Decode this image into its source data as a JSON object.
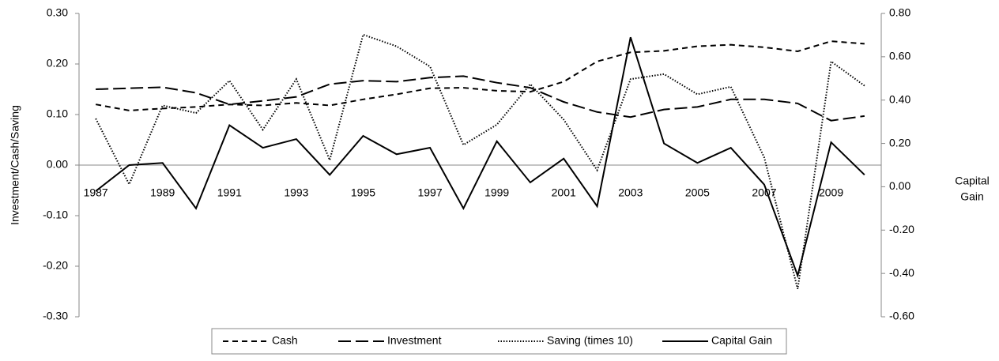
{
  "chart_data": {
    "type": "line",
    "ylabel": "Investment/Cash/Saving",
    "y2label": [
      "Capital",
      "Gain"
    ],
    "categories": [
      "1987",
      null,
      "1989",
      null,
      "1991",
      null,
      "1993",
      null,
      "1995",
      null,
      "1997",
      null,
      "1999",
      null,
      "2001",
      null,
      "2003",
      null,
      "2005",
      null,
      "2007",
      null,
      "2009",
      null
    ],
    "ylim": [
      -0.3,
      0.3
    ],
    "yticks": [
      {
        "value": -0.3,
        "label": "-0.30"
      },
      {
        "value": -0.2,
        "label": "-0.20"
      },
      {
        "value": -0.1,
        "label": "-0.10"
      },
      {
        "value": 0,
        "label": "0.00"
      },
      {
        "value": 0.1,
        "label": "0.10"
      },
      {
        "value": 0.2,
        "label": "0.20"
      },
      {
        "value": 0.3,
        "label": "0.30"
      }
    ],
    "y2lim": [
      -0.6,
      0.8
    ],
    "y2ticks": [
      {
        "value": -0.6,
        "label": "-0.60"
      },
      {
        "value": -0.4,
        "label": "-0.40"
      },
      {
        "value": -0.2,
        "label": "-0.20"
      },
      {
        "value": 0,
        "label": "0.00"
      },
      {
        "value": 0.2,
        "label": "0.20"
      },
      {
        "value": 0.4,
        "label": "0.40"
      },
      {
        "value": 0.6,
        "label": "0.60"
      },
      {
        "value": 0.8,
        "label": "0.80"
      }
    ],
    "legend": "bottom",
    "series": [
      {
        "name": "Cash",
        "color": "#000000",
        "dash": "7,5",
        "values": [
          0.12,
          0.108,
          0.112,
          0.115,
          0.12,
          0.118,
          0.123,
          0.118,
          0.13,
          0.14,
          0.152,
          0.153,
          0.147,
          0.145,
          0.165,
          0.205,
          0.223,
          0.226,
          0.235,
          0.238,
          0.233,
          0.225,
          0.245,
          0.24
        ]
      },
      {
        "name": "Investment",
        "color": "#000000",
        "dash": "16,6",
        "values": [
          0.15,
          0.152,
          0.154,
          0.143,
          0.12,
          0.127,
          0.135,
          0.16,
          0.167,
          0.165,
          0.173,
          0.176,
          0.163,
          0.153,
          0.125,
          0.105,
          0.095,
          0.11,
          0.115,
          0.13,
          0.13,
          0.122,
          0.088,
          0.097
        ]
      },
      {
        "name": "Saving (times 10)",
        "color": "#000000",
        "dash": "1.5,2",
        "values": [
          0.092,
          -0.038,
          0.118,
          0.103,
          0.167,
          0.07,
          0.17,
          0.01,
          0.258,
          0.235,
          0.195,
          0.04,
          0.08,
          0.16,
          0.09,
          -0.01,
          0.17,
          0.18,
          0.14,
          0.155,
          0.015,
          -0.245,
          0.205,
          0.157
        ]
      },
      {
        "name": "Capital Gain",
        "color": "#000000",
        "dash": "none",
        "axis": "y2",
        "values": [
          -0.02,
          0.1,
          0.11,
          -0.1,
          0.284,
          0.18,
          0.22,
          0.055,
          0.235,
          0.15,
          0.18,
          -0.1,
          0.21,
          0.02,
          0.13,
          -0.09,
          0.69,
          0.2,
          0.11,
          0.18,
          0.01,
          -0.41,
          0.205,
          0.055
        ]
      }
    ]
  }
}
